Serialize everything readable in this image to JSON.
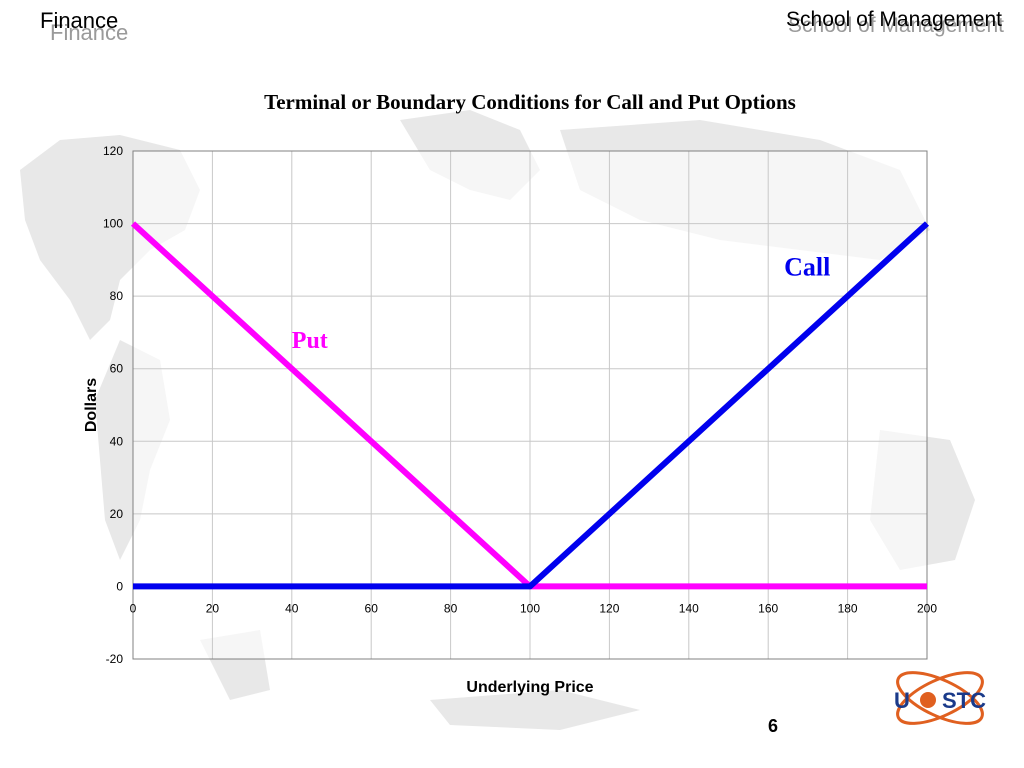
{
  "header": {
    "left_title": "Finance",
    "right_title": "School of Management"
  },
  "page_number": "6",
  "logo_text": "UESTC",
  "colors": {
    "put": "#ff00ff",
    "call": "#0000ee",
    "grid": "#c8c8c8",
    "axis": "#808080"
  },
  "chart_data": {
    "type": "line",
    "title": "Terminal or Boundary Conditions for Call and Put Options",
    "xlabel": "Underlying Price",
    "ylabel": "Dollars",
    "xlim": [
      0,
      200
    ],
    "ylim": [
      -20,
      120
    ],
    "x_ticks": [
      0,
      20,
      40,
      60,
      80,
      100,
      120,
      140,
      160,
      180,
      200
    ],
    "y_ticks": [
      120,
      100,
      80,
      60,
      40,
      20,
      0,
      -20
    ],
    "grid": true,
    "series": [
      {
        "name": "Put",
        "x": [
          0,
          100,
          200
        ],
        "y": [
          100,
          0,
          0
        ]
      },
      {
        "name": "Call",
        "x": [
          0,
          100,
          200
        ],
        "y": [
          0,
          0,
          100
        ]
      }
    ],
    "annotations": [
      {
        "text": "Call",
        "series": "Call"
      },
      {
        "text": "Put",
        "series": "Put"
      }
    ]
  }
}
